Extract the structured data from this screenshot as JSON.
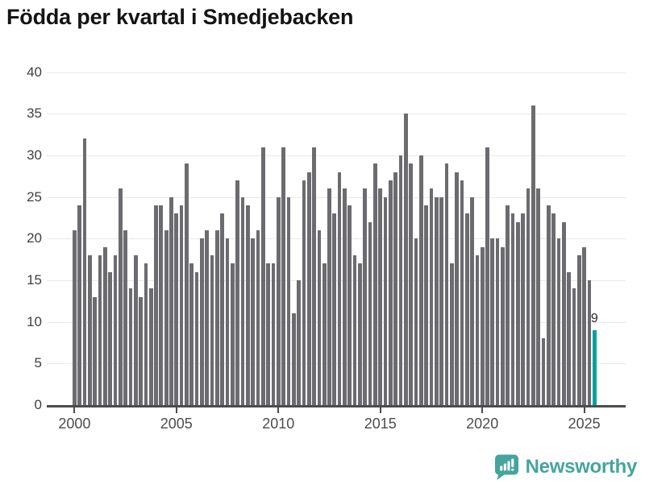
{
  "title": "Födda per kvartal i Smedjebacken",
  "chart_data": {
    "type": "bar",
    "title": "Födda per kvartal i Smedjebacken",
    "ylabel": "",
    "xlabel": "",
    "ylim": [
      0,
      40
    ],
    "y_ticks": [
      0,
      5,
      10,
      15,
      20,
      25,
      30,
      35,
      40
    ],
    "grid": "horizontal",
    "x_tick_labels": [
      "2000",
      "2005",
      "2010",
      "2015",
      "2020",
      "2025"
    ],
    "x_tick_every_n_bars": 20,
    "bar_color": "#6b6b70",
    "highlight_color": "#00a49b",
    "highlight_quarter": "2025 Q3",
    "highlight_value_label": "9",
    "years": [
      {
        "year": 2000,
        "values": [
          21,
          24,
          32,
          18
        ]
      },
      {
        "year": 2001,
        "values": [
          13,
          18,
          19,
          16
        ]
      },
      {
        "year": 2002,
        "values": [
          18,
          26,
          21,
          14
        ]
      },
      {
        "year": 2003,
        "values": [
          18,
          13,
          17,
          14
        ]
      },
      {
        "year": 2004,
        "values": [
          24,
          24,
          21,
          25
        ]
      },
      {
        "year": 2005,
        "values": [
          23,
          24,
          29,
          17
        ]
      },
      {
        "year": 2006,
        "values": [
          16,
          20,
          21,
          18
        ]
      },
      {
        "year": 2007,
        "values": [
          21,
          23,
          20,
          17
        ]
      },
      {
        "year": 2008,
        "values": [
          27,
          25,
          24,
          20
        ]
      },
      {
        "year": 2009,
        "values": [
          21,
          31,
          17,
          17
        ]
      },
      {
        "year": 2010,
        "values": [
          25,
          31,
          25,
          11
        ]
      },
      {
        "year": 2011,
        "values": [
          15,
          27,
          28,
          31
        ]
      },
      {
        "year": 2012,
        "values": [
          21,
          17,
          26,
          23
        ]
      },
      {
        "year": 2013,
        "values": [
          28,
          26,
          24,
          18
        ]
      },
      {
        "year": 2014,
        "values": [
          17,
          26,
          22,
          29
        ]
      },
      {
        "year": 2015,
        "values": [
          26,
          25,
          27,
          28
        ]
      },
      {
        "year": 2016,
        "values": [
          30,
          35,
          29,
          20
        ]
      },
      {
        "year": 2017,
        "values": [
          30,
          24,
          26,
          25
        ]
      },
      {
        "year": 2018,
        "values": [
          25,
          29,
          17,
          28
        ]
      },
      {
        "year": 2019,
        "values": [
          27,
          23,
          25,
          18
        ]
      },
      {
        "year": 2020,
        "values": [
          19,
          31,
          20,
          20
        ]
      },
      {
        "year": 2021,
        "values": [
          19,
          24,
          23,
          22
        ]
      },
      {
        "year": 2022,
        "values": [
          23,
          26,
          36,
          26
        ]
      },
      {
        "year": 2023,
        "values": [
          8,
          24,
          23,
          20
        ]
      },
      {
        "year": 2024,
        "values": [
          22,
          16,
          14,
          18
        ]
      },
      {
        "year": 2025,
        "values": [
          19,
          15,
          9
        ]
      }
    ]
  },
  "footer": {
    "brand": "Newsworthy"
  }
}
